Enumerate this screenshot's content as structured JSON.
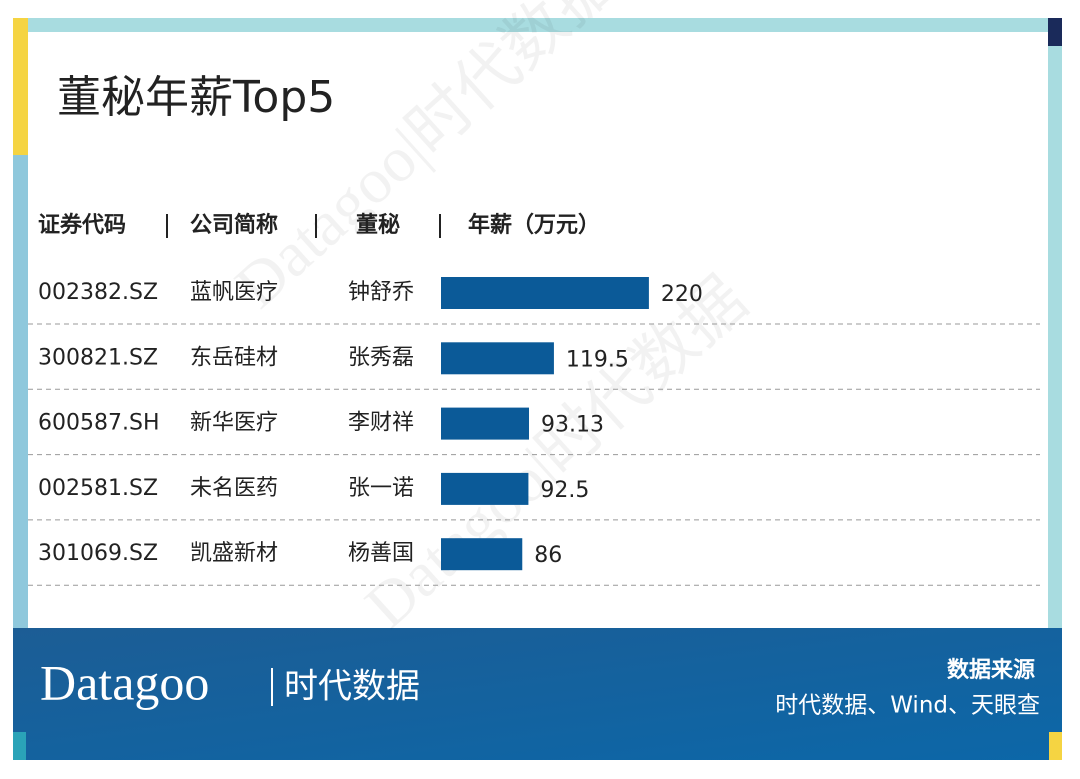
{
  "title": "董秘年薪Top5",
  "chart_data": {
    "type": "bar",
    "orientation": "horizontal",
    "columns": [
      "证券代码",
      "公司简称",
      "董秘",
      "年薪（万元）"
    ],
    "codes": [
      "002382.SZ",
      "300821.SZ",
      "600587.SH",
      "002581.SZ",
      "301069.SZ"
    ],
    "companies": [
      "蓝帆医疗",
      "东岳硅材",
      "新华医疗",
      "未名医药",
      "凯盛新材"
    ],
    "categories": [
      "钟舒乔",
      "张秀磊",
      "李财祥",
      "张一诺",
      "杨善国"
    ],
    "values": [
      220,
      119.5,
      93.13,
      92.5,
      86
    ],
    "color": "#0b5a98"
  },
  "watermark": "Datagoo|时代数据",
  "footer": {
    "brand": "Datagoo",
    "brand_cn": "时代数据",
    "source_title": "数据来源",
    "source": "时代数据、Wind、天眼查"
  }
}
